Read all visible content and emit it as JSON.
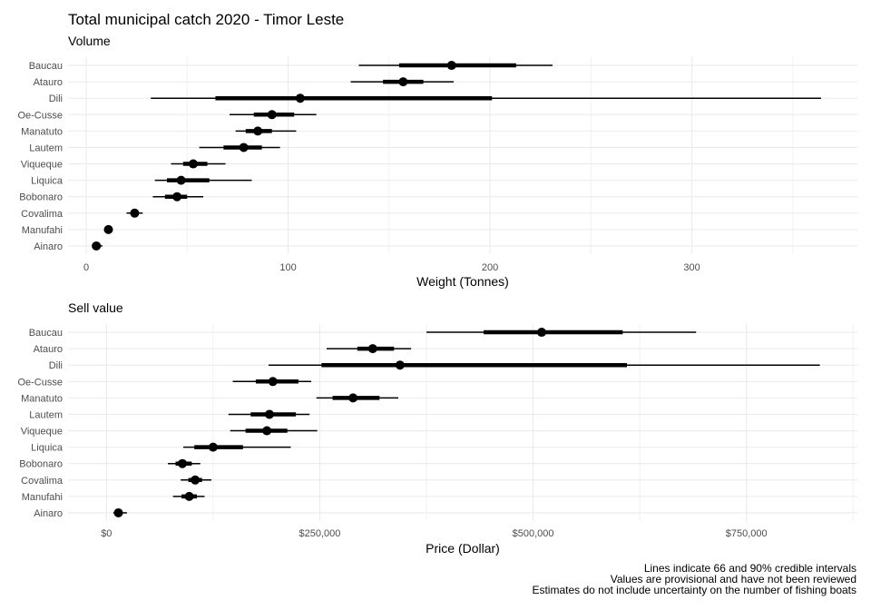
{
  "figure": {
    "title": "Total municipal catch 2020 - Timor Leste",
    "caption_lines": [
      "Lines indicate 66 and 90% credible intervals",
      "Values are provisional and have not been reviewed",
      "Estimates do not include uncertainty on the number of fishing boats"
    ]
  },
  "chart_data": [
    {
      "type": "pointrange",
      "subtitle": "Volume",
      "xlabel": "Weight (Tonnes)",
      "ylabel": "",
      "xlim": [
        -9,
        382
      ],
      "xticks": [
        0,
        100,
        200,
        300
      ],
      "xtick_labels": [
        "0",
        "100",
        "200",
        "300"
      ],
      "grid": true,
      "categories": [
        "Baucau",
        "Atauro",
        "Dili",
        "Oe-Cusse",
        "Manatuto",
        "Lautem",
        "Viqueque",
        "Liquica",
        "Bobonaro",
        "Covalima",
        "Manufahi",
        "Ainaro"
      ],
      "median": [
        181,
        157,
        106,
        92,
        85,
        78,
        53,
        47,
        45,
        24,
        11,
        5
      ],
      "lower66": [
        155,
        147,
        64,
        83,
        79,
        68,
        48,
        40,
        39,
        22,
        10,
        4
      ],
      "upper66": [
        213,
        167,
        201,
        103,
        92,
        87,
        60,
        61,
        50,
        26,
        12,
        6
      ],
      "lower90": [
        135,
        131,
        32,
        71,
        74,
        56,
        42,
        34,
        33,
        20,
        9,
        3
      ],
      "upper90": [
        231,
        182,
        364,
        114,
        104,
        96,
        69,
        82,
        58,
        28,
        13,
        8
      ]
    },
    {
      "type": "pointrange",
      "subtitle": "Sell value",
      "xlabel": "Price (Dollar)",
      "ylabel": "",
      "xlim": [
        -45000,
        880000
      ],
      "xticks": [
        0,
        250000,
        500000,
        750000
      ],
      "xtick_labels": [
        "$0",
        "$250,000",
        "$500,000",
        "$750,000"
      ],
      "grid": true,
      "categories": [
        "Baucau",
        "Atauro",
        "Dili",
        "Oe-Cusse",
        "Manatuto",
        "Lautem",
        "Viqueque",
        "Liquica",
        "Bobonaro",
        "Covalima",
        "Manufahi",
        "Ainaro"
      ],
      "median": [
        510000,
        312000,
        344000,
        195000,
        289000,
        191000,
        188000,
        125000,
        89000,
        104000,
        97000,
        14000
      ],
      "lower66": [
        442000,
        294000,
        252000,
        175000,
        265000,
        169000,
        163000,
        103000,
        81000,
        96000,
        88000,
        11000
      ],
      "upper66": [
        605000,
        337000,
        610000,
        225000,
        320000,
        222000,
        212000,
        160000,
        100000,
        112000,
        106000,
        17000
      ],
      "lower90": [
        375000,
        258000,
        190000,
        148000,
        246000,
        143000,
        145000,
        90000,
        72000,
        87000,
        78000,
        8000
      ],
      "upper90": [
        691000,
        357000,
        836000,
        240000,
        342000,
        238000,
        247000,
        216000,
        110000,
        123000,
        115000,
        24000
      ]
    }
  ]
}
